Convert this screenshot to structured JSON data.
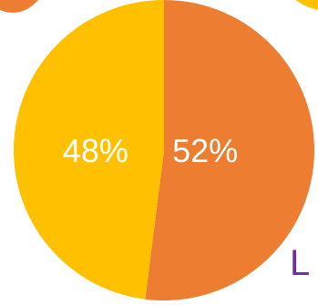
{
  "chart_data": {
    "type": "pie",
    "title": "",
    "slices": [
      {
        "label": "52%",
        "value": 52,
        "color": "#ED7D31"
      },
      {
        "label": "48%",
        "value": 48,
        "color": "#FFC000"
      }
    ],
    "start_direction": "top",
    "direction": "clockwise"
  },
  "cropped_neighbors": {
    "top_left_disc_color": "#ED7D31",
    "top_right_disc_color": "#FFC000",
    "edge_text": "L",
    "edge_text_color": "#7030A0"
  }
}
